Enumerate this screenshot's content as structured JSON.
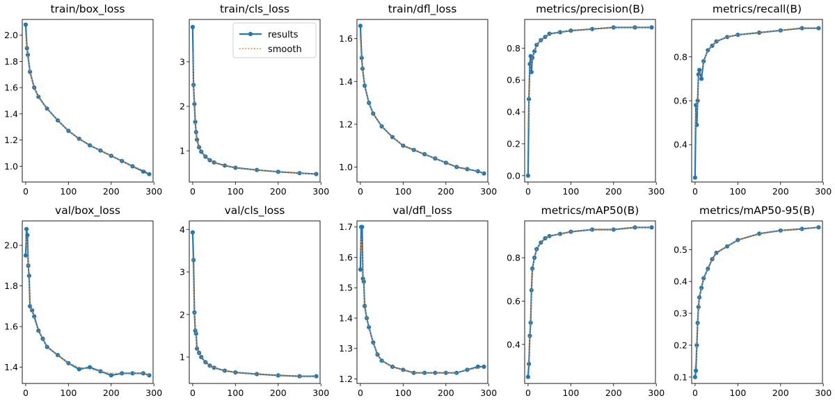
{
  "chart_data": [
    {
      "type": "line",
      "title": "train/box_loss",
      "xlabel": "",
      "ylabel": "",
      "xlim": [
        -8,
        298
      ],
      "ylim": [
        0.88,
        2.12
      ],
      "xticks": [
        0,
        100,
        200,
        300
      ],
      "yticks": [
        1.0,
        1.2,
        1.4,
        1.6,
        1.8,
        2.0
      ],
      "ytick_decimals": 1,
      "grid": false,
      "series": [
        {
          "name": "results",
          "x": [
            0,
            3,
            5,
            10,
            20,
            30,
            50,
            75,
            100,
            125,
            150,
            175,
            200,
            225,
            250,
            275,
            289
          ],
          "y": [
            2.08,
            1.9,
            1.85,
            1.72,
            1.6,
            1.53,
            1.44,
            1.35,
            1.27,
            1.21,
            1.16,
            1.12,
            1.08,
            1.04,
            1.0,
            0.96,
            0.94
          ]
        },
        {
          "name": "smooth",
          "x": [
            0,
            3,
            5,
            10,
            20,
            30,
            50,
            75,
            100,
            125,
            150,
            175,
            200,
            225,
            250,
            275,
            289
          ],
          "y": [
            2.02,
            1.9,
            1.84,
            1.72,
            1.6,
            1.53,
            1.44,
            1.35,
            1.27,
            1.21,
            1.16,
            1.12,
            1.08,
            1.04,
            1.0,
            0.97,
            0.95
          ]
        }
      ]
    },
    {
      "type": "line",
      "title": "train/cls_loss",
      "xlabel": "",
      "ylabel": "",
      "xlim": [
        -8,
        298
      ],
      "ylim": [
        0.3,
        3.95
      ],
      "xticks": [
        0,
        100,
        200,
        300
      ],
      "yticks": [
        1,
        2,
        3
      ],
      "ytick_decimals": 0,
      "grid": false,
      "legend": {
        "entries": [
          "results",
          "smooth"
        ],
        "location": "upper right"
      },
      "series": [
        {
          "name": "results",
          "x": [
            0,
            2,
            4,
            6,
            8,
            10,
            15,
            20,
            30,
            40,
            50,
            75,
            100,
            150,
            200,
            250,
            289
          ],
          "y": [
            3.78,
            2.48,
            2.05,
            1.65,
            1.42,
            1.25,
            1.08,
            0.98,
            0.87,
            0.79,
            0.74,
            0.67,
            0.62,
            0.57,
            0.53,
            0.5,
            0.48
          ]
        },
        {
          "name": "smooth",
          "x": [
            0,
            2,
            4,
            6,
            8,
            10,
            15,
            20,
            30,
            40,
            50,
            75,
            100,
            150,
            200,
            250,
            289
          ],
          "y": [
            3.2,
            2.45,
            2.02,
            1.63,
            1.41,
            1.25,
            1.08,
            0.98,
            0.87,
            0.79,
            0.74,
            0.67,
            0.62,
            0.57,
            0.53,
            0.5,
            0.48
          ]
        }
      ]
    },
    {
      "type": "line",
      "title": "train/dfl_loss",
      "xlabel": "",
      "ylabel": "",
      "xlim": [
        -8,
        298
      ],
      "ylim": [
        0.93,
        1.69
      ],
      "xticks": [
        0,
        100,
        200,
        300
      ],
      "yticks": [
        1.0,
        1.2,
        1.4,
        1.6
      ],
      "ytick_decimals": 1,
      "grid": false,
      "series": [
        {
          "name": "results",
          "x": [
            0,
            3,
            5,
            10,
            20,
            30,
            50,
            75,
            100,
            125,
            150,
            175,
            200,
            225,
            250,
            275,
            289
          ],
          "y": [
            1.66,
            1.51,
            1.46,
            1.38,
            1.3,
            1.25,
            1.19,
            1.14,
            1.1,
            1.08,
            1.06,
            1.04,
            1.02,
            1.0,
            0.99,
            0.98,
            0.97
          ]
        },
        {
          "name": "smooth",
          "x": [
            0,
            3,
            5,
            10,
            20,
            30,
            50,
            75,
            100,
            125,
            150,
            175,
            200,
            225,
            250,
            275,
            289
          ],
          "y": [
            1.6,
            1.5,
            1.46,
            1.38,
            1.3,
            1.25,
            1.19,
            1.14,
            1.1,
            1.08,
            1.06,
            1.04,
            1.02,
            1.0,
            0.99,
            0.98,
            0.97
          ]
        }
      ]
    },
    {
      "type": "line",
      "title": "metrics/precision(B)",
      "xlabel": "",
      "ylabel": "",
      "xlim": [
        -8,
        298
      ],
      "ylim": [
        -0.04,
        0.98
      ],
      "xticks": [
        0,
        100,
        200,
        300
      ],
      "yticks": [
        0.0,
        0.2,
        0.4,
        0.6,
        0.8
      ],
      "ytick_decimals": 1,
      "grid": false,
      "series": [
        {
          "name": "results",
          "x": [
            0,
            2,
            4,
            6,
            8,
            10,
            15,
            20,
            30,
            40,
            50,
            75,
            100,
            150,
            200,
            250,
            289
          ],
          "y": [
            0.0,
            0.48,
            0.7,
            0.75,
            0.65,
            0.74,
            0.78,
            0.82,
            0.85,
            0.87,
            0.89,
            0.9,
            0.91,
            0.92,
            0.93,
            0.93,
            0.93
          ]
        },
        {
          "name": "smooth",
          "x": [
            0,
            2,
            4,
            6,
            8,
            10,
            15,
            20,
            30,
            40,
            50,
            75,
            100,
            150,
            200,
            250,
            289
          ],
          "y": [
            0.3,
            0.5,
            0.65,
            0.7,
            0.7,
            0.74,
            0.78,
            0.82,
            0.85,
            0.87,
            0.89,
            0.9,
            0.91,
            0.92,
            0.93,
            0.93,
            0.93
          ]
        }
      ]
    },
    {
      "type": "line",
      "title": "metrics/recall(B)",
      "xlabel": "",
      "ylabel": "",
      "xlim": [
        -8,
        298
      ],
      "ylim": [
        0.23,
        0.97
      ],
      "xticks": [
        0,
        100,
        200,
        300
      ],
      "yticks": [
        0.4,
        0.6,
        0.8
      ],
      "ytick_decimals": 1,
      "grid": false,
      "series": [
        {
          "name": "results",
          "x": [
            0,
            2,
            4,
            6,
            8,
            10,
            15,
            20,
            30,
            40,
            50,
            75,
            100,
            150,
            200,
            250,
            289
          ],
          "y": [
            0.25,
            0.58,
            0.49,
            0.6,
            0.72,
            0.74,
            0.7,
            0.78,
            0.83,
            0.85,
            0.87,
            0.89,
            0.9,
            0.91,
            0.92,
            0.93,
            0.93
          ]
        },
        {
          "name": "smooth",
          "x": [
            0,
            2,
            4,
            6,
            8,
            10,
            15,
            20,
            30,
            40,
            50,
            75,
            100,
            150,
            200,
            250,
            289
          ],
          "y": [
            0.45,
            0.55,
            0.55,
            0.62,
            0.7,
            0.72,
            0.73,
            0.78,
            0.83,
            0.85,
            0.87,
            0.89,
            0.9,
            0.91,
            0.92,
            0.93,
            0.93
          ]
        }
      ]
    },
    {
      "type": "line",
      "title": "val/box_loss",
      "xlabel": "",
      "ylabel": "",
      "xlim": [
        -8,
        298
      ],
      "ylim": [
        1.32,
        2.12
      ],
      "xticks": [
        0,
        100,
        200,
        300
      ],
      "yticks": [
        1.4,
        1.6,
        1.8,
        2.0
      ],
      "ytick_decimals": 1,
      "grid": false,
      "series": [
        {
          "name": "results",
          "x": [
            0,
            2,
            4,
            6,
            8,
            10,
            15,
            20,
            30,
            40,
            50,
            75,
            100,
            125,
            150,
            175,
            200,
            225,
            250,
            275,
            289
          ],
          "y": [
            1.95,
            2.08,
            2.05,
            1.9,
            1.85,
            1.7,
            1.68,
            1.65,
            1.58,
            1.54,
            1.5,
            1.46,
            1.42,
            1.39,
            1.4,
            1.38,
            1.36,
            1.37,
            1.37,
            1.37,
            1.36
          ]
        },
        {
          "name": "smooth",
          "x": [
            0,
            2,
            4,
            6,
            8,
            10,
            15,
            20,
            30,
            40,
            50,
            75,
            100,
            125,
            150,
            175,
            200,
            225,
            250,
            275,
            289
          ],
          "y": [
            2.0,
            2.03,
            2.0,
            1.9,
            1.83,
            1.72,
            1.68,
            1.64,
            1.58,
            1.54,
            1.5,
            1.46,
            1.42,
            1.4,
            1.39,
            1.38,
            1.37,
            1.37,
            1.37,
            1.37,
            1.36
          ]
        }
      ]
    },
    {
      "type": "line",
      "title": "val/cls_loss",
      "xlabel": "",
      "ylabel": "",
      "xlim": [
        -8,
        298
      ],
      "ylim": [
        0.38,
        4.2
      ],
      "xticks": [
        0,
        100,
        200,
        300
      ],
      "yticks": [
        1,
        2,
        3,
        4
      ],
      "ytick_decimals": 0,
      "grid": false,
      "series": [
        {
          "name": "results",
          "x": [
            0,
            2,
            4,
            6,
            8,
            10,
            15,
            20,
            30,
            40,
            50,
            75,
            100,
            150,
            200,
            250,
            289
          ],
          "y": [
            3.93,
            3.28,
            2.05,
            1.62,
            1.55,
            1.2,
            1.1,
            1.0,
            0.88,
            0.8,
            0.75,
            0.68,
            0.64,
            0.6,
            0.57,
            0.55,
            0.55
          ]
        },
        {
          "name": "smooth",
          "x": [
            0,
            2,
            4,
            6,
            8,
            10,
            15,
            20,
            30,
            40,
            50,
            75,
            100,
            150,
            200,
            250,
            289
          ],
          "y": [
            3.5,
            2.9,
            2.0,
            1.65,
            1.5,
            1.22,
            1.1,
            1.0,
            0.88,
            0.8,
            0.75,
            0.68,
            0.64,
            0.6,
            0.57,
            0.55,
            0.55
          ]
        }
      ]
    },
    {
      "type": "line",
      "title": "val/dfl_loss",
      "xlabel": "",
      "ylabel": "",
      "xlim": [
        -8,
        298
      ],
      "ylim": [
        1.185,
        1.72
      ],
      "xticks": [
        0,
        100,
        200,
        300
      ],
      "yticks": [
        1.2,
        1.3,
        1.4,
        1.5,
        1.6,
        1.7
      ],
      "ytick_decimals": 1,
      "grid": false,
      "series": [
        {
          "name": "results",
          "x": [
            0,
            2,
            4,
            6,
            8,
            10,
            15,
            20,
            30,
            40,
            50,
            75,
            100,
            125,
            150,
            175,
            200,
            225,
            250,
            275,
            289
          ],
          "y": [
            1.56,
            1.7,
            1.7,
            1.53,
            1.52,
            1.44,
            1.4,
            1.37,
            1.32,
            1.28,
            1.26,
            1.24,
            1.23,
            1.22,
            1.22,
            1.22,
            1.22,
            1.22,
            1.23,
            1.24,
            1.24
          ]
        },
        {
          "name": "smooth",
          "x": [
            0,
            2,
            4,
            6,
            8,
            10,
            15,
            20,
            30,
            40,
            50,
            75,
            100,
            125,
            150,
            175,
            200,
            225,
            250,
            275,
            289
          ],
          "y": [
            1.62,
            1.66,
            1.64,
            1.55,
            1.51,
            1.45,
            1.4,
            1.37,
            1.32,
            1.28,
            1.26,
            1.24,
            1.23,
            1.22,
            1.22,
            1.22,
            1.22,
            1.22,
            1.23,
            1.235,
            1.24
          ]
        }
      ]
    },
    {
      "type": "line",
      "title": "metrics/mAP50(B)",
      "xlabel": "",
      "ylabel": "",
      "xlim": [
        -8,
        298
      ],
      "ylim": [
        0.22,
        0.97
      ],
      "xticks": [
        0,
        100,
        200,
        300
      ],
      "yticks": [
        0.4,
        0.6,
        0.8
      ],
      "ytick_decimals": 1,
      "grid": false,
      "series": [
        {
          "name": "results",
          "x": [
            0,
            2,
            4,
            6,
            8,
            10,
            15,
            20,
            30,
            40,
            50,
            75,
            100,
            150,
            200,
            250,
            289
          ],
          "y": [
            0.25,
            0.31,
            0.44,
            0.5,
            0.65,
            0.75,
            0.8,
            0.84,
            0.87,
            0.89,
            0.9,
            0.91,
            0.92,
            0.93,
            0.93,
            0.94,
            0.94
          ]
        },
        {
          "name": "smooth",
          "x": [
            0,
            2,
            4,
            6,
            8,
            10,
            15,
            20,
            30,
            40,
            50,
            75,
            100,
            150,
            200,
            250,
            289
          ],
          "y": [
            0.3,
            0.34,
            0.45,
            0.52,
            0.64,
            0.74,
            0.8,
            0.84,
            0.87,
            0.89,
            0.9,
            0.91,
            0.92,
            0.93,
            0.93,
            0.94,
            0.94
          ]
        }
      ]
    },
    {
      "type": "line",
      "title": "metrics/mAP50-95(B)",
      "xlabel": "",
      "ylabel": "",
      "xlim": [
        -8,
        298
      ],
      "ylim": [
        0.08,
        0.59
      ],
      "xticks": [
        0,
        100,
        200,
        300
      ],
      "yticks": [
        0.1,
        0.2,
        0.3,
        0.4,
        0.5
      ],
      "ytick_decimals": 1,
      "grid": false,
      "series": [
        {
          "name": "results",
          "x": [
            0,
            2,
            4,
            6,
            8,
            10,
            15,
            20,
            30,
            40,
            50,
            75,
            100,
            150,
            200,
            250,
            289
          ],
          "y": [
            0.1,
            0.12,
            0.2,
            0.27,
            0.32,
            0.35,
            0.38,
            0.41,
            0.44,
            0.47,
            0.49,
            0.51,
            0.53,
            0.55,
            0.56,
            0.565,
            0.57
          ]
        },
        {
          "name": "smooth",
          "x": [
            0,
            2,
            4,
            6,
            8,
            10,
            15,
            20,
            30,
            40,
            50,
            75,
            100,
            150,
            200,
            250,
            289
          ],
          "y": [
            0.13,
            0.15,
            0.21,
            0.27,
            0.31,
            0.35,
            0.38,
            0.41,
            0.44,
            0.47,
            0.49,
            0.51,
            0.53,
            0.55,
            0.56,
            0.565,
            0.57
          ]
        }
      ]
    }
  ],
  "colors": {
    "results": "#1f77b4",
    "smooth": "#ff7f0e",
    "frame": "#000000",
    "background": "#ffffff"
  }
}
